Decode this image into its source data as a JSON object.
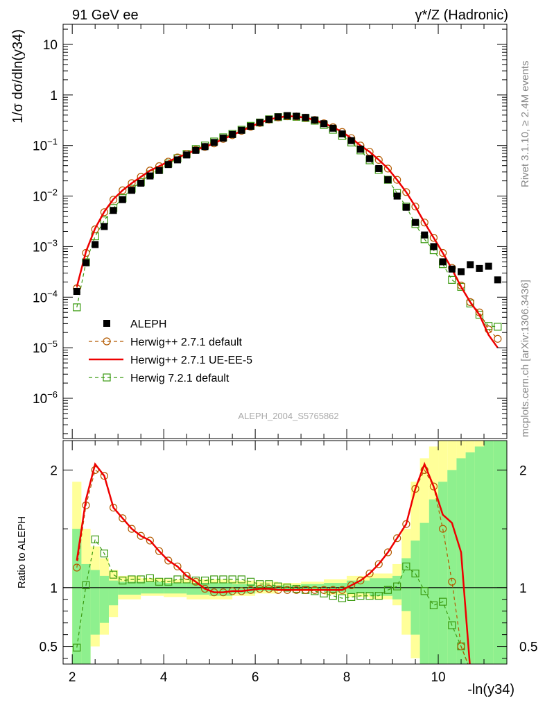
{
  "header": {
    "left": "91 GeV ee",
    "right": "γ*/Z (Hadronic)"
  },
  "side_labels": {
    "rivet": "Rivet 3.1.10, ≥ 2.4M events",
    "mcplots": "mcplots.cern.ch [arXiv:1306.3436]"
  },
  "analysis_tag": "ALEPH_2004_S5765862",
  "colors": {
    "aleph": "#000000",
    "herwig271_default": "#b35a00",
    "herwig271_ueee5": "#ee0000",
    "herwig721_default": "#3a9a10",
    "band_inner": "#8ef08e",
    "band_outer": "#ffff99"
  },
  "chart_data": [
    {
      "type": "scatter",
      "panel": "main",
      "ylabel": "1/σ dσ/dln(y34)",
      "yscale": "log",
      "ylim": [
        1.6e-07,
        25
      ],
      "xlim": [
        1.8,
        11.5
      ],
      "yticks": [
        "10^-6",
        "10^-5",
        "10^-4",
        "10^-3",
        "10^-2",
        "10^-1",
        "1",
        "10"
      ],
      "legend": {
        "placement": "lower-left",
        "entries": [
          "ALEPH",
          "Herwig++ 2.7.1 default",
          "Herwig++ 2.7.1 UE-EE-5",
          "Herwig 7.2.1 default"
        ]
      },
      "series": [
        {
          "name": "ALEPH",
          "x": [
            2.1,
            2.3,
            2.5,
            2.7,
            2.9,
            3.1,
            3.3,
            3.5,
            3.7,
            3.9,
            4.1,
            4.3,
            4.5,
            4.7,
            4.9,
            5.1,
            5.3,
            5.5,
            5.7,
            5.9,
            6.1,
            6.3,
            6.5,
            6.7,
            6.9,
            7.1,
            7.3,
            7.5,
            7.7,
            7.9,
            8.1,
            8.3,
            8.5,
            8.7,
            8.9,
            9.1,
            9.3,
            9.5,
            9.7,
            9.9,
            10.1,
            10.3,
            10.5,
            10.7,
            10.9,
            11.1,
            11.3
          ],
          "y": [
            0.00013,
            0.00048,
            0.0011,
            0.0025,
            0.0052,
            0.0085,
            0.013,
            0.018,
            0.025,
            0.032,
            0.042,
            0.052,
            0.065,
            0.08,
            0.095,
            0.115,
            0.14,
            0.165,
            0.2,
            0.24,
            0.285,
            0.33,
            0.37,
            0.39,
            0.38,
            0.36,
            0.32,
            0.27,
            0.22,
            0.17,
            0.125,
            0.085,
            0.055,
            0.035,
            0.021,
            0.01,
            0.006,
            0.003,
            0.0017,
            0.001,
            0.0005,
            0.00036,
            0.00032,
            0.00044,
            0.00037,
            0.00041,
            0.00022
          ]
        },
        {
          "name": "Herwig++ 2.7.1 default",
          "x": [
            2.1,
            2.3,
            2.5,
            2.7,
            2.9,
            3.1,
            3.3,
            3.5,
            3.7,
            3.9,
            4.1,
            4.3,
            4.5,
            4.7,
            4.9,
            5.1,
            5.3,
            5.5,
            5.7,
            5.9,
            6.1,
            6.3,
            6.5,
            6.7,
            6.9,
            7.1,
            7.3,
            7.5,
            7.7,
            7.9,
            8.1,
            8.3,
            8.5,
            8.7,
            8.9,
            9.1,
            9.3,
            9.5,
            9.7,
            9.9,
            10.1,
            10.3,
            10.5,
            10.7,
            10.9,
            11.1,
            11.3
          ],
          "y": [
            0.00015,
            0.00075,
            0.0022,
            0.0048,
            0.0085,
            0.013,
            0.018,
            0.024,
            0.032,
            0.039,
            0.048,
            0.058,
            0.068,
            0.082,
            0.094,
            0.11,
            0.135,
            0.16,
            0.195,
            0.235,
            0.28,
            0.325,
            0.36,
            0.38,
            0.375,
            0.355,
            0.32,
            0.275,
            0.23,
            0.185,
            0.14,
            0.1,
            0.075,
            0.052,
            0.035,
            0.021,
            0.012,
            0.0062,
            0.003,
            0.0015,
            0.00075,
            0.00038,
            0.00017,
            8e-05,
            5e-05,
            2.3e-05,
            1.5e-05
          ]
        },
        {
          "name": "Herwig++ 2.7.1 UE-EE-5",
          "x": [
            2.1,
            2.3,
            2.5,
            2.7,
            2.9,
            3.1,
            3.3,
            3.5,
            3.7,
            3.9,
            4.1,
            4.3,
            4.5,
            4.7,
            4.9,
            5.1,
            5.3,
            5.5,
            5.7,
            5.9,
            6.1,
            6.3,
            6.5,
            6.7,
            6.9,
            7.1,
            7.3,
            7.5,
            7.7,
            7.9,
            8.1,
            8.3,
            8.5,
            8.7,
            8.9,
            9.1,
            9.3,
            9.5,
            9.7,
            9.9,
            10.1,
            10.3,
            10.5,
            10.7,
            10.9,
            11.1,
            11.3
          ],
          "y": [
            0.00016,
            0.0008,
            0.0023,
            0.0049,
            0.0087,
            0.013,
            0.018,
            0.024,
            0.032,
            0.039,
            0.048,
            0.058,
            0.068,
            0.082,
            0.094,
            0.11,
            0.135,
            0.16,
            0.195,
            0.235,
            0.28,
            0.325,
            0.36,
            0.38,
            0.375,
            0.355,
            0.32,
            0.275,
            0.23,
            0.185,
            0.14,
            0.1,
            0.075,
            0.052,
            0.035,
            0.021,
            0.012,
            0.0062,
            0.003,
            0.0015,
            0.00075,
            0.00036,
            0.00016,
            8e-05,
            4.5e-05,
            1.8e-05,
            1e-05
          ]
        },
        {
          "name": "Herwig 7.2.1 default",
          "x": [
            2.1,
            2.3,
            2.5,
            2.7,
            2.9,
            3.1,
            3.3,
            3.5,
            3.7,
            3.9,
            4.1,
            4.3,
            4.5,
            4.7,
            4.9,
            5.1,
            5.3,
            5.5,
            5.7,
            5.9,
            6.1,
            6.3,
            6.5,
            6.7,
            6.9,
            7.1,
            7.3,
            7.5,
            7.7,
            7.9,
            8.1,
            8.3,
            8.5,
            8.7,
            8.9,
            9.1,
            9.3,
            9.5,
            9.7,
            9.9,
            10.1,
            10.3,
            10.5,
            10.7,
            10.9,
            11.1,
            11.3
          ],
          "y": [
            6.3e-05,
            0.00049,
            0.0016,
            0.0033,
            0.0058,
            0.0091,
            0.014,
            0.019,
            0.027,
            0.033,
            0.044,
            0.056,
            0.068,
            0.085,
            0.1,
            0.12,
            0.145,
            0.17,
            0.205,
            0.245,
            0.285,
            0.33,
            0.365,
            0.38,
            0.37,
            0.35,
            0.31,
            0.255,
            0.205,
            0.155,
            0.115,
            0.08,
            0.051,
            0.033,
            0.021,
            0.0115,
            0.0062,
            0.0028,
            0.0014,
            0.00085,
            0.00045,
            0.00022,
            0.00016,
            7.5e-05,
            4.5e-05,
            2.7e-05,
            2.6e-05
          ]
        }
      ]
    },
    {
      "type": "line",
      "panel": "ratio",
      "ylabel": "Ratio to ALEPH",
      "xlabel": "-ln(y34)",
      "ylim": [
        0.35,
        2.25
      ],
      "xlim": [
        1.8,
        11.5
      ],
      "xticks": [
        2,
        4,
        6,
        8,
        10
      ],
      "yticks": [
        0.5,
        1,
        2
      ],
      "reference_line": 1,
      "series": [
        {
          "name": "Herwig++ 2.7.1 default",
          "x": [
            2.1,
            2.3,
            2.5,
            2.7,
            2.9,
            3.1,
            3.3,
            3.5,
            3.7,
            3.9,
            4.1,
            4.3,
            4.5,
            4.7,
            4.9,
            5.1,
            5.3,
            5.5,
            5.7,
            5.9,
            6.1,
            6.3,
            6.5,
            6.7,
            6.9,
            7.1,
            7.3,
            7.5,
            7.7,
            7.9,
            8.1,
            8.3,
            8.5,
            8.7,
            8.9,
            9.1,
            9.3,
            9.5,
            9.7,
            9.9,
            10.1,
            10.3,
            10.5,
            10.7,
            10.9,
            11.1,
            11.3
          ],
          "y": [
            1.17,
            1.7,
            2.0,
            1.95,
            1.68,
            1.59,
            1.5,
            1.44,
            1.4,
            1.31,
            1.23,
            1.18,
            1.1,
            1.05,
            0.99,
            0.96,
            0.96,
            0.97,
            0.97,
            0.98,
            0.99,
            0.99,
            0.98,
            0.98,
            0.98,
            0.98,
            0.98,
            0.98,
            0.98,
            0.98,
            1.02,
            1.06,
            1.12,
            1.2,
            1.3,
            1.42,
            1.54,
            1.84,
            2.0,
            1.86,
            1.5,
            1.05,
            0.5,
            0.3,
            0.3,
            0.3,
            0.3
          ]
        },
        {
          "name": "Herwig++ 2.7.1 UE-EE-5",
          "x": [
            2.1,
            2.3,
            2.5,
            2.7,
            2.9,
            3.1,
            3.3,
            3.5,
            3.7,
            3.9,
            4.1,
            4.3,
            4.5,
            4.7,
            4.9,
            5.1,
            5.3,
            5.5,
            5.7,
            5.9,
            6.1,
            6.3,
            6.5,
            6.7,
            6.9,
            7.1,
            7.3,
            7.5,
            7.7,
            7.9,
            8.1,
            8.3,
            8.5,
            8.7,
            8.9,
            9.1,
            9.3,
            9.5,
            9.7,
            9.9,
            10.1,
            10.3,
            10.5,
            10.7,
            10.9,
            11.1,
            11.3
          ],
          "y": [
            1.23,
            1.75,
            2.05,
            1.95,
            1.68,
            1.59,
            1.5,
            1.44,
            1.4,
            1.31,
            1.23,
            1.18,
            1.1,
            1.05,
            0.99,
            0.96,
            0.96,
            0.97,
            0.97,
            0.98,
            0.99,
            0.99,
            0.98,
            0.98,
            0.98,
            0.98,
            0.98,
            0.98,
            0.98,
            0.98,
            1.02,
            1.06,
            1.12,
            1.2,
            1.3,
            1.42,
            1.54,
            1.84,
            2.05,
            1.86,
            1.62,
            1.55,
            1.3,
            0.3,
            0.3,
            0.3,
            0.3
          ]
        },
        {
          "name": "Herwig 7.2.1 default",
          "x": [
            2.1,
            2.3,
            2.5,
            2.7,
            2.9,
            3.1,
            3.3,
            3.5,
            3.7,
            3.9,
            4.1,
            4.3,
            4.5,
            4.7,
            4.9,
            5.1,
            5.3,
            5.5,
            5.7,
            5.9,
            6.1,
            6.3,
            6.5,
            6.7,
            6.9,
            7.1,
            7.3,
            7.5,
            7.7,
            7.9,
            8.1,
            8.3,
            8.5,
            8.7,
            8.9,
            9.1,
            9.3,
            9.5,
            9.7,
            9.9,
            10.1,
            10.3,
            10.5,
            10.7,
            10.9,
            11.1,
            11.3
          ],
          "y": [
            0.49,
            1.02,
            1.41,
            1.29,
            1.11,
            1.06,
            1.07,
            1.07,
            1.08,
            1.05,
            1.05,
            1.07,
            1.07,
            1.06,
            1.06,
            1.07,
            1.07,
            1.07,
            1.07,
            1.05,
            1.03,
            1.03,
            1.01,
            1.0,
            0.99,
            0.98,
            0.97,
            0.95,
            0.93,
            0.91,
            0.92,
            0.93,
            0.93,
            0.93,
            0.98,
            1.01,
            1.18,
            1.12,
            0.97,
            0.85,
            0.88,
            0.68,
            0.5,
            0.3,
            0.3,
            0.3,
            0.3
          ]
        }
      ],
      "uncertainty_bands": {
        "x_edges": [
          2.0,
          2.2,
          2.4,
          2.6,
          2.8,
          3.0,
          3.5,
          4.0,
          4.5,
          5.0,
          5.5,
          6.0,
          6.5,
          7.0,
          7.5,
          8.0,
          8.5,
          9.0,
          9.2,
          9.4,
          9.6,
          9.8,
          10.0,
          10.2,
          10.4,
          10.6,
          10.8,
          11.0,
          11.2,
          11.5
        ],
        "inner_lo": [
          0.3,
          0.35,
          0.6,
          0.7,
          0.85,
          0.94,
          0.95,
          0.95,
          0.94,
          0.93,
          0.95,
          0.97,
          0.98,
          0.98,
          0.96,
          0.95,
          0.93,
          0.9,
          0.8,
          0.6,
          0.3,
          0.3,
          0.3,
          0.3,
          0.3,
          0.3,
          0.3,
          0.3,
          0.3
        ],
        "inner_hi": [
          1.5,
          1.2,
          1.15,
          1.1,
          1.06,
          1.05,
          1.05,
          1.04,
          1.04,
          1.04,
          1.03,
          1.02,
          1.02,
          1.03,
          1.04,
          1.06,
          1.08,
          1.1,
          1.25,
          1.4,
          1.55,
          1.75,
          1.9,
          2.0,
          2.1,
          2.15,
          2.2,
          2.25,
          2.3
        ],
        "outer_lo": [
          0.2,
          0.3,
          0.5,
          0.6,
          0.75,
          0.9,
          0.93,
          0.92,
          0.9,
          0.9,
          0.93,
          0.95,
          0.97,
          0.97,
          0.94,
          0.92,
          0.9,
          0.85,
          0.6,
          0.4,
          0.2,
          0.2,
          0.2,
          0.2,
          0.2,
          0.2,
          0.2,
          0.2,
          0.2
        ],
        "outer_hi": [
          1.9,
          1.5,
          1.35,
          1.25,
          1.15,
          1.1,
          1.08,
          1.07,
          1.07,
          1.07,
          1.06,
          1.05,
          1.04,
          1.05,
          1.07,
          1.1,
          1.12,
          1.2,
          1.5,
          1.9,
          2.1,
          2.2,
          2.3,
          2.4,
          2.4,
          2.4,
          2.4,
          2.4,
          2.4
        ]
      }
    }
  ]
}
